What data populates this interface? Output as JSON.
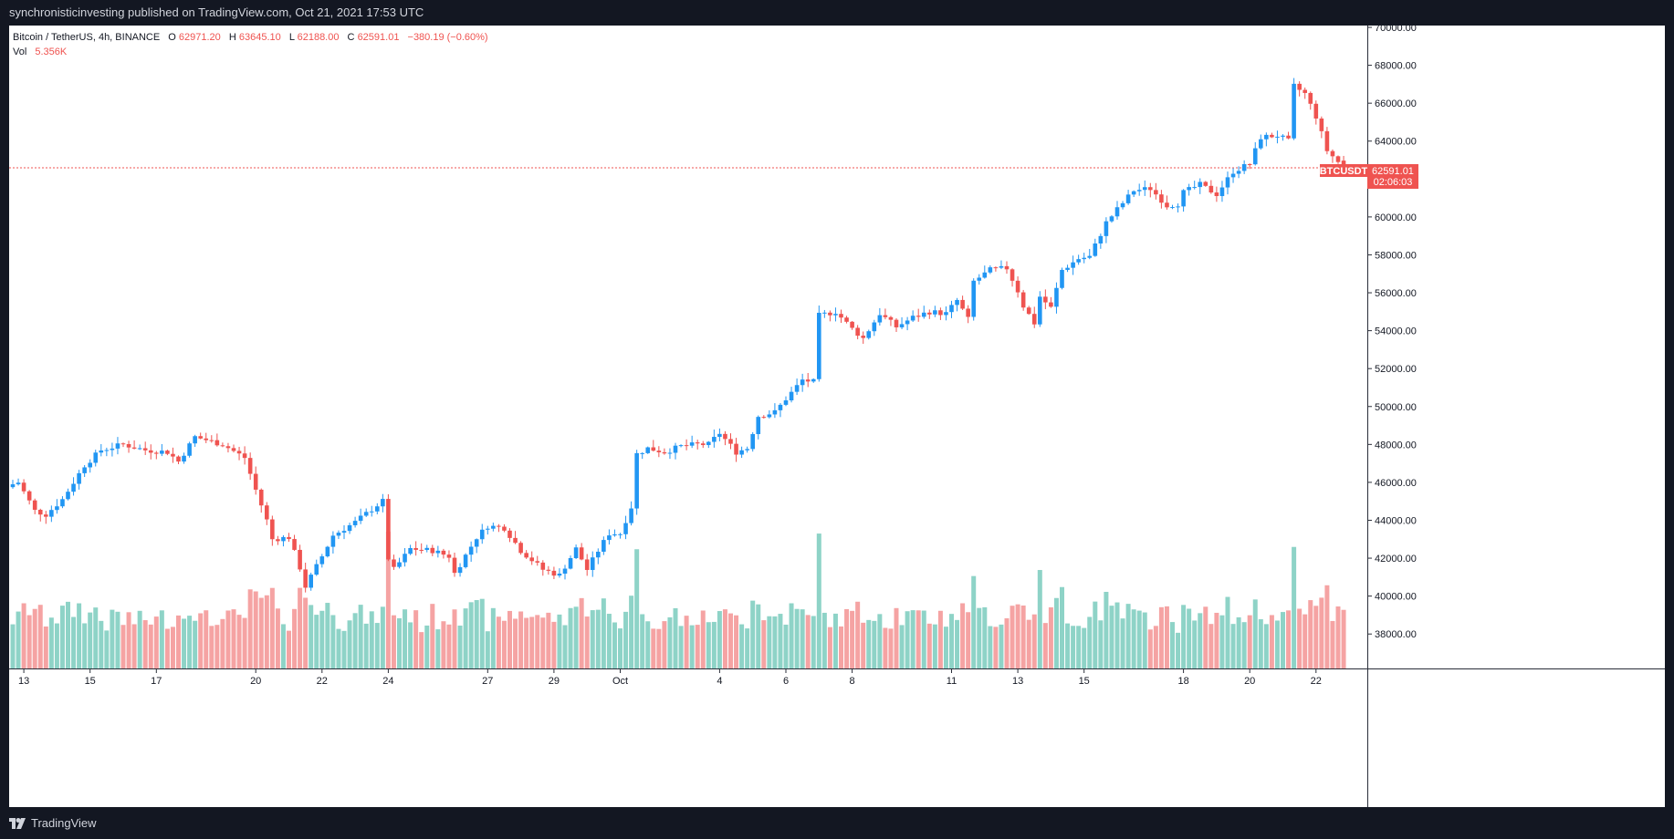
{
  "header": {
    "publish_line": "synchronisticinvesting published on TradingView.com, Oct 21, 2021 17:53 UTC"
  },
  "legend": {
    "symbol": "Bitcoin / TetherUS, 4h, BINANCE",
    "o_label": "O",
    "o": "62971.20",
    "h_label": "H",
    "h": "63645.10",
    "l_label": "L",
    "l": "62188.00",
    "c_label": "C",
    "c": "62591.01",
    "change": "−380.19 (−0.60%)",
    "vol_label": "Vol",
    "vol": "5.356K"
  },
  "price_marker": {
    "ticker": "BTCUSDT",
    "price": "62591.01",
    "countdown": "02:06:03"
  },
  "footer": {
    "logo_text": "TradingView"
  },
  "colors": {
    "up": "#2196f3",
    "down": "#ef5350",
    "vol_up": "#8ed3c7",
    "vol_down": "#f5a3a3",
    "background": "#131722",
    "panel": "#ffffff"
  },
  "chart_data": {
    "type": "candlestick",
    "title": "Bitcoin / TetherUS, 4h, BINANCE",
    "ylim": [
      37000,
      70000
    ],
    "y_ticks": [
      "70000.00",
      "68000.00",
      "66000.00",
      "64000.00",
      "62000.00",
      "60000.00",
      "58000.00",
      "56000.00",
      "54000.00",
      "52000.00",
      "50000.00",
      "48000.00",
      "46000.00",
      "44000.00",
      "42000.00",
      "40000.00",
      "38000.00"
    ],
    "x_ticks": [
      {
        "label": "13",
        "bar": 2
      },
      {
        "label": "15",
        "bar": 14
      },
      {
        "label": "17",
        "bar": 26
      },
      {
        "label": "20",
        "bar": 44
      },
      {
        "label": "22",
        "bar": 56
      },
      {
        "label": "24",
        "bar": 68
      },
      {
        "label": "27",
        "bar": 86
      },
      {
        "label": "29",
        "bar": 98
      },
      {
        "label": "Oct",
        "bar": 110
      },
      {
        "label": "4",
        "bar": 128
      },
      {
        "label": "6",
        "bar": 140
      },
      {
        "label": "8",
        "bar": 152
      },
      {
        "label": "11",
        "bar": 170
      },
      {
        "label": "13",
        "bar": 182
      },
      {
        "label": "15",
        "bar": 194
      },
      {
        "label": "18",
        "bar": 212
      },
      {
        "label": "20",
        "bar": 224
      },
      {
        "label": "22",
        "bar": 236
      }
    ],
    "last_price": 62591.01,
    "anchors": [
      [
        0,
        45900
      ],
      [
        1,
        46000
      ],
      [
        4,
        44500
      ],
      [
        6,
        44300
      ],
      [
        9,
        45100
      ],
      [
        13,
        46900
      ],
      [
        16,
        47700
      ],
      [
        20,
        48000
      ],
      [
        24,
        47700
      ],
      [
        28,
        47600
      ],
      [
        30,
        47100
      ],
      [
        33,
        48400
      ],
      [
        38,
        48000
      ],
      [
        42,
        47300
      ],
      [
        44,
        45600
      ],
      [
        46,
        44000
      ],
      [
        47,
        43000
      ],
      [
        50,
        43100
      ],
      [
        52,
        41500
      ],
      [
        53,
        40500
      ],
      [
        56,
        42100
      ],
      [
        58,
        43200
      ],
      [
        62,
        43900
      ],
      [
        66,
        44800
      ],
      [
        67,
        45000
      ],
      [
        68,
        42000
      ],
      [
        69,
        41400
      ],
      [
        72,
        42500
      ],
      [
        76,
        42400
      ],
      [
        79,
        42100
      ],
      [
        80,
        41200
      ],
      [
        84,
        43100
      ],
      [
        86,
        43700
      ],
      [
        89,
        43600
      ],
      [
        92,
        42400
      ],
      [
        96,
        41400
      ],
      [
        99,
        41100
      ],
      [
        102,
        42500
      ],
      [
        104,
        41400
      ],
      [
        106,
        42400
      ],
      [
        108,
        43300
      ],
      [
        110,
        43300
      ],
      [
        112,
        44700
      ],
      [
        113,
        47500
      ],
      [
        115,
        47800
      ],
      [
        118,
        47600
      ],
      [
        121,
        47900
      ],
      [
        124,
        48000
      ],
      [
        126,
        48000
      ],
      [
        128,
        48600
      ],
      [
        131,
        47600
      ],
      [
        133,
        47800
      ],
      [
        135,
        49500
      ],
      [
        138,
        49700
      ],
      [
        140,
        50400
      ],
      [
        143,
        51400
      ],
      [
        145,
        51300
      ],
      [
        146,
        54800
      ],
      [
        149,
        55000
      ],
      [
        152,
        54100
      ],
      [
        154,
        53600
      ],
      [
        157,
        54900
      ],
      [
        160,
        54200
      ],
      [
        163,
        54700
      ],
      [
        166,
        55000
      ],
      [
        169,
        54900
      ],
      [
        171,
        55600
      ],
      [
        173,
        54600
      ],
      [
        174,
        56600
      ],
      [
        177,
        57200
      ],
      [
        180,
        57300
      ],
      [
        182,
        56100
      ],
      [
        183,
        55300
      ],
      [
        185,
        54400
      ],
      [
        186,
        55800
      ],
      [
        188,
        55200
      ],
      [
        190,
        57200
      ],
      [
        193,
        57800
      ],
      [
        195,
        57900
      ],
      [
        196,
        58500
      ],
      [
        198,
        59700
      ],
      [
        200,
        60400
      ],
      [
        203,
        61400
      ],
      [
        206,
        61500
      ],
      [
        209,
        60600
      ],
      [
        211,
        60700
      ],
      [
        212,
        61300
      ],
      [
        215,
        61700
      ],
      [
        218,
        61200
      ],
      [
        221,
        62400
      ],
      [
        224,
        62800
      ],
      [
        226,
        64200
      ],
      [
        229,
        64300
      ],
      [
        231,
        64000
      ],
      [
        232,
        66900
      ],
      [
        234,
        66500
      ],
      [
        236,
        65300
      ],
      [
        238,
        63500
      ],
      [
        240,
        62900
      ],
      [
        241,
        62591
      ]
    ]
  }
}
